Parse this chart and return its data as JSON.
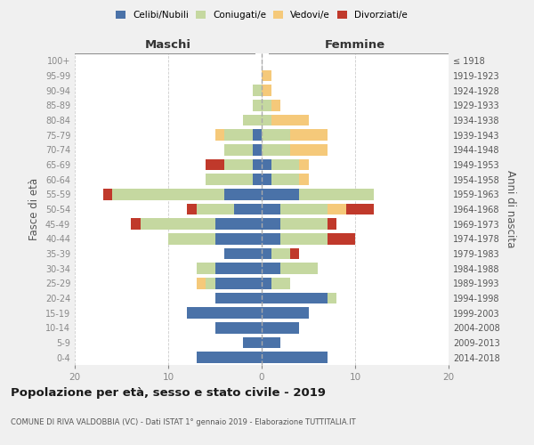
{
  "age_groups": [
    "0-4",
    "5-9",
    "10-14",
    "15-19",
    "20-24",
    "25-29",
    "30-34",
    "35-39",
    "40-44",
    "45-49",
    "50-54",
    "55-59",
    "60-64",
    "65-69",
    "70-74",
    "75-79",
    "80-84",
    "85-89",
    "90-94",
    "95-99",
    "100+"
  ],
  "birth_years": [
    "2014-2018",
    "2009-2013",
    "2004-2008",
    "1999-2003",
    "1994-1998",
    "1989-1993",
    "1984-1988",
    "1979-1983",
    "1974-1978",
    "1969-1973",
    "1964-1968",
    "1959-1963",
    "1954-1958",
    "1949-1953",
    "1944-1948",
    "1939-1943",
    "1934-1938",
    "1929-1933",
    "1924-1928",
    "1919-1923",
    "≤ 1918"
  ],
  "maschi": {
    "celibi": [
      7,
      2,
      5,
      8,
      5,
      5,
      5,
      4,
      5,
      5,
      3,
      4,
      1,
      1,
      1,
      1,
      0,
      0,
      0,
      0,
      0
    ],
    "coniugati": [
      0,
      0,
      0,
      0,
      0,
      1,
      2,
      0,
      5,
      8,
      4,
      12,
      5,
      3,
      3,
      3,
      2,
      1,
      1,
      0,
      0
    ],
    "vedovi": [
      0,
      0,
      0,
      0,
      0,
      1,
      0,
      0,
      0,
      0,
      0,
      0,
      0,
      0,
      0,
      1,
      0,
      0,
      0,
      0,
      0
    ],
    "divorziati": [
      0,
      0,
      0,
      0,
      0,
      0,
      0,
      0,
      0,
      1,
      1,
      1,
      0,
      2,
      0,
      0,
      0,
      0,
      0,
      0,
      0
    ]
  },
  "femmine": {
    "nubili": [
      7,
      2,
      4,
      5,
      7,
      1,
      2,
      1,
      2,
      2,
      2,
      4,
      1,
      1,
      0,
      0,
      0,
      0,
      0,
      0,
      0
    ],
    "coniugate": [
      0,
      0,
      0,
      0,
      1,
      2,
      4,
      2,
      5,
      5,
      5,
      8,
      3,
      3,
      3,
      3,
      1,
      1,
      0,
      0,
      0
    ],
    "vedove": [
      0,
      0,
      0,
      0,
      0,
      0,
      0,
      0,
      0,
      0,
      2,
      0,
      1,
      1,
      4,
      4,
      4,
      1,
      1,
      1,
      0
    ],
    "divorziate": [
      0,
      0,
      0,
      0,
      0,
      0,
      0,
      1,
      3,
      1,
      3,
      0,
      0,
      0,
      0,
      0,
      0,
      0,
      0,
      0,
      0
    ]
  },
  "colors": {
    "celibi": "#4a72a8",
    "coniugati": "#c5d8a0",
    "vedovi": "#f5c97a",
    "divorziati": "#c0392b"
  },
  "xlim": 20,
  "title": "Popolazione per età, sesso e stato civile - 2019",
  "subtitle": "COMUNE DI RIVA VALDOBBIA (VC) - Dati ISTAT 1° gennaio 2019 - Elaborazione TUTTITALIA.IT",
  "ylabel_left": "Fasce di età",
  "ylabel_right": "Anni di nascita",
  "header_left": "Maschi",
  "header_right": "Femmine",
  "bg_color": "#f0f0f0",
  "plot_bg": "#ffffff"
}
